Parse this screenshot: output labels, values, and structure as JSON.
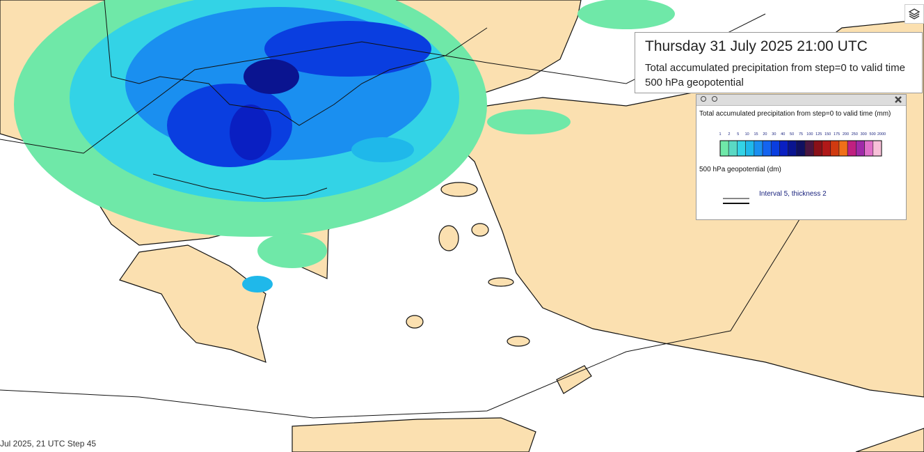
{
  "header": {
    "title": "Thursday 31 July 2025 21:00 UTC",
    "subtitles": [
      "Total accumulated precipitation from step=0 to valid time",
      "500 hPa geopotential"
    ]
  },
  "legend": {
    "title": "Total accumulated precipitation from step=0 to valid time (mm)",
    "levels": [
      1,
      2,
      5,
      10,
      15,
      20,
      30,
      40,
      50,
      75,
      100,
      125,
      150,
      175,
      200,
      250,
      300,
      500,
      2000
    ],
    "colors": [
      "#6fe8a8",
      "#5ad9c4",
      "#33d3e6",
      "#1fb8ea",
      "#1a8ff0",
      "#1464f0",
      "#0a3ee0",
      "#0a1fc2",
      "#0a1490",
      "#101060",
      "#4a1540",
      "#8a1018",
      "#b01818",
      "#d03a10",
      "#f07018",
      "#c02080",
      "#a02aa8",
      "#e070c8",
      "#f8c0d8"
    ],
    "geopotential_title": "500 hPa geopotential (dm)",
    "contour_note": "Interval 5, thickness 2"
  },
  "footer": {
    "text": "Jul 2025, 21 UTC Step 45"
  }
}
